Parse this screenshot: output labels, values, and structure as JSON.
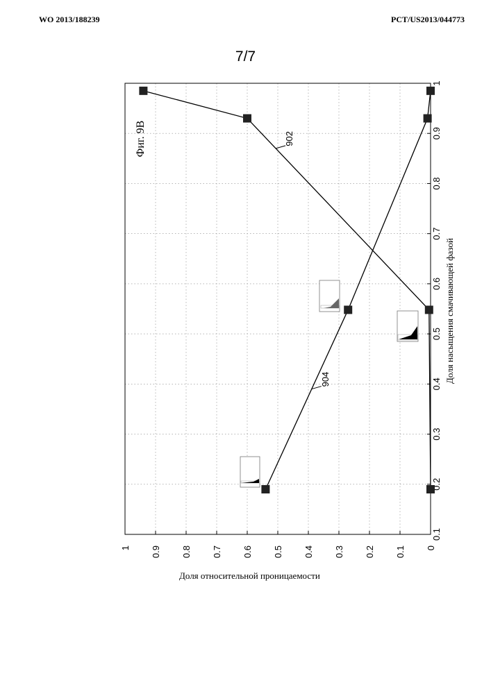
{
  "header": {
    "left": "WO 2013/188239",
    "right": "PCT/US2013/044773"
  },
  "page_number": "7/7",
  "chart_data": {
    "type": "line",
    "figure_label": "Фиг. 9В",
    "xlabel": "Доля насыщения смачивающей фазой",
    "ylabel": "Доля относительной проницаемости",
    "xlim": [
      0.1,
      1
    ],
    "ylim": [
      0,
      1
    ],
    "x_ticks": [
      "0.1",
      "0.2",
      "0.3",
      "0.4",
      "0.5",
      "0.6",
      "0.7",
      "0.8",
      "0.9",
      "1"
    ],
    "y_ticks": [
      "0",
      "0.1",
      "0.2",
      "0.3",
      "0.4",
      "0.5",
      "0.6",
      "0.7",
      "0.8",
      "0.9",
      "1"
    ],
    "grid": true,
    "series": [
      {
        "name": "902",
        "x": [
          0.19,
          0.548,
          0.93,
          0.985
        ],
        "y": [
          0,
          0.005,
          0.6,
          0.94
        ]
      },
      {
        "name": "904",
        "x": [
          0.19,
          0.548,
          0.93,
          0.985
        ],
        "y": [
          0.54,
          0.27,
          0.01,
          0.0
        ]
      }
    ],
    "label_anchor_x": {
      "902": 0.87,
      "904": 0.39
    }
  }
}
